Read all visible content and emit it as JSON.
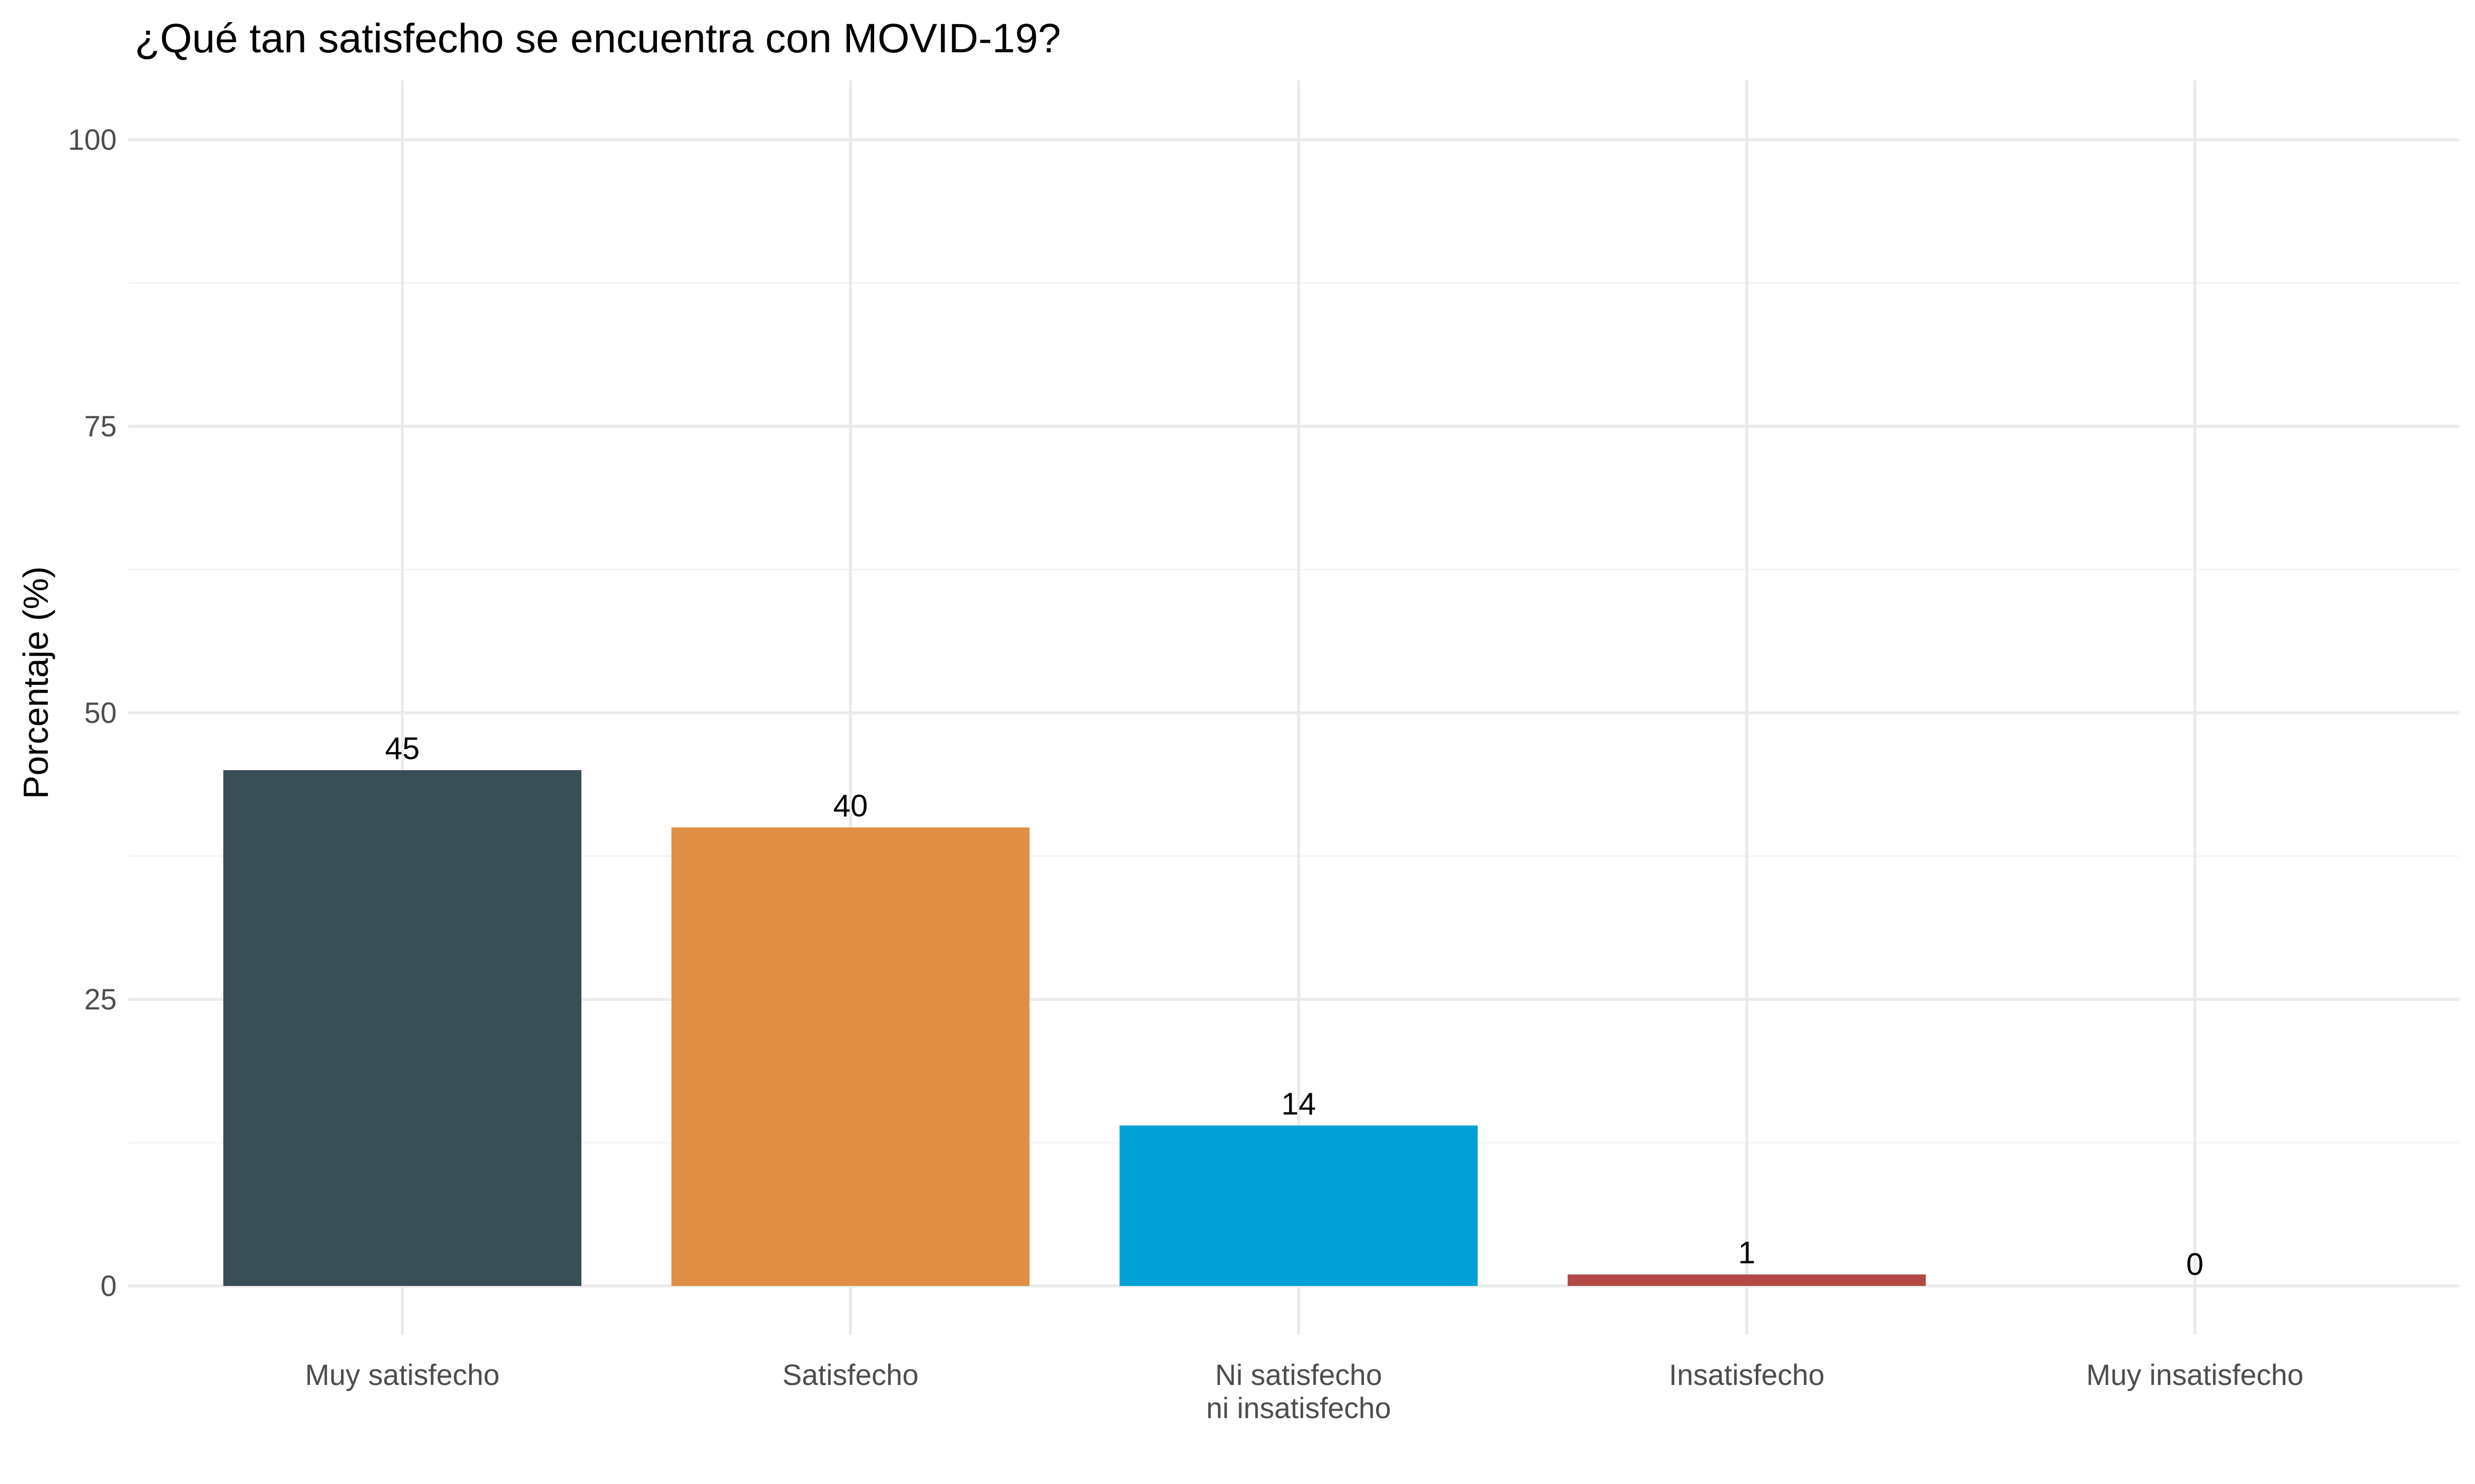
{
  "chart_data": {
    "type": "bar",
    "title": "¿Qué tan satisfecho se encuentra con MOVID-19?",
    "xlabel": "",
    "ylabel": "Porcentaje (%)",
    "ylim": [
      0,
      100
    ],
    "yticks": [
      0,
      25,
      50,
      75,
      100
    ],
    "grid": true,
    "legend": "none",
    "categories": [
      "Muy satisfecho",
      "Satisfecho",
      "Ni satisfecho\nni insatisfecho",
      "Insatisfecho",
      "Muy insatisfecho"
    ],
    "values": [
      45,
      40,
      14,
      1,
      0
    ],
    "data_labels": [
      "45",
      "40",
      "14",
      "1",
      "0"
    ],
    "colors": [
      "#394e55",
      "#df8f44",
      "#00a1d5",
      "#b24745",
      "#79af97"
    ]
  }
}
